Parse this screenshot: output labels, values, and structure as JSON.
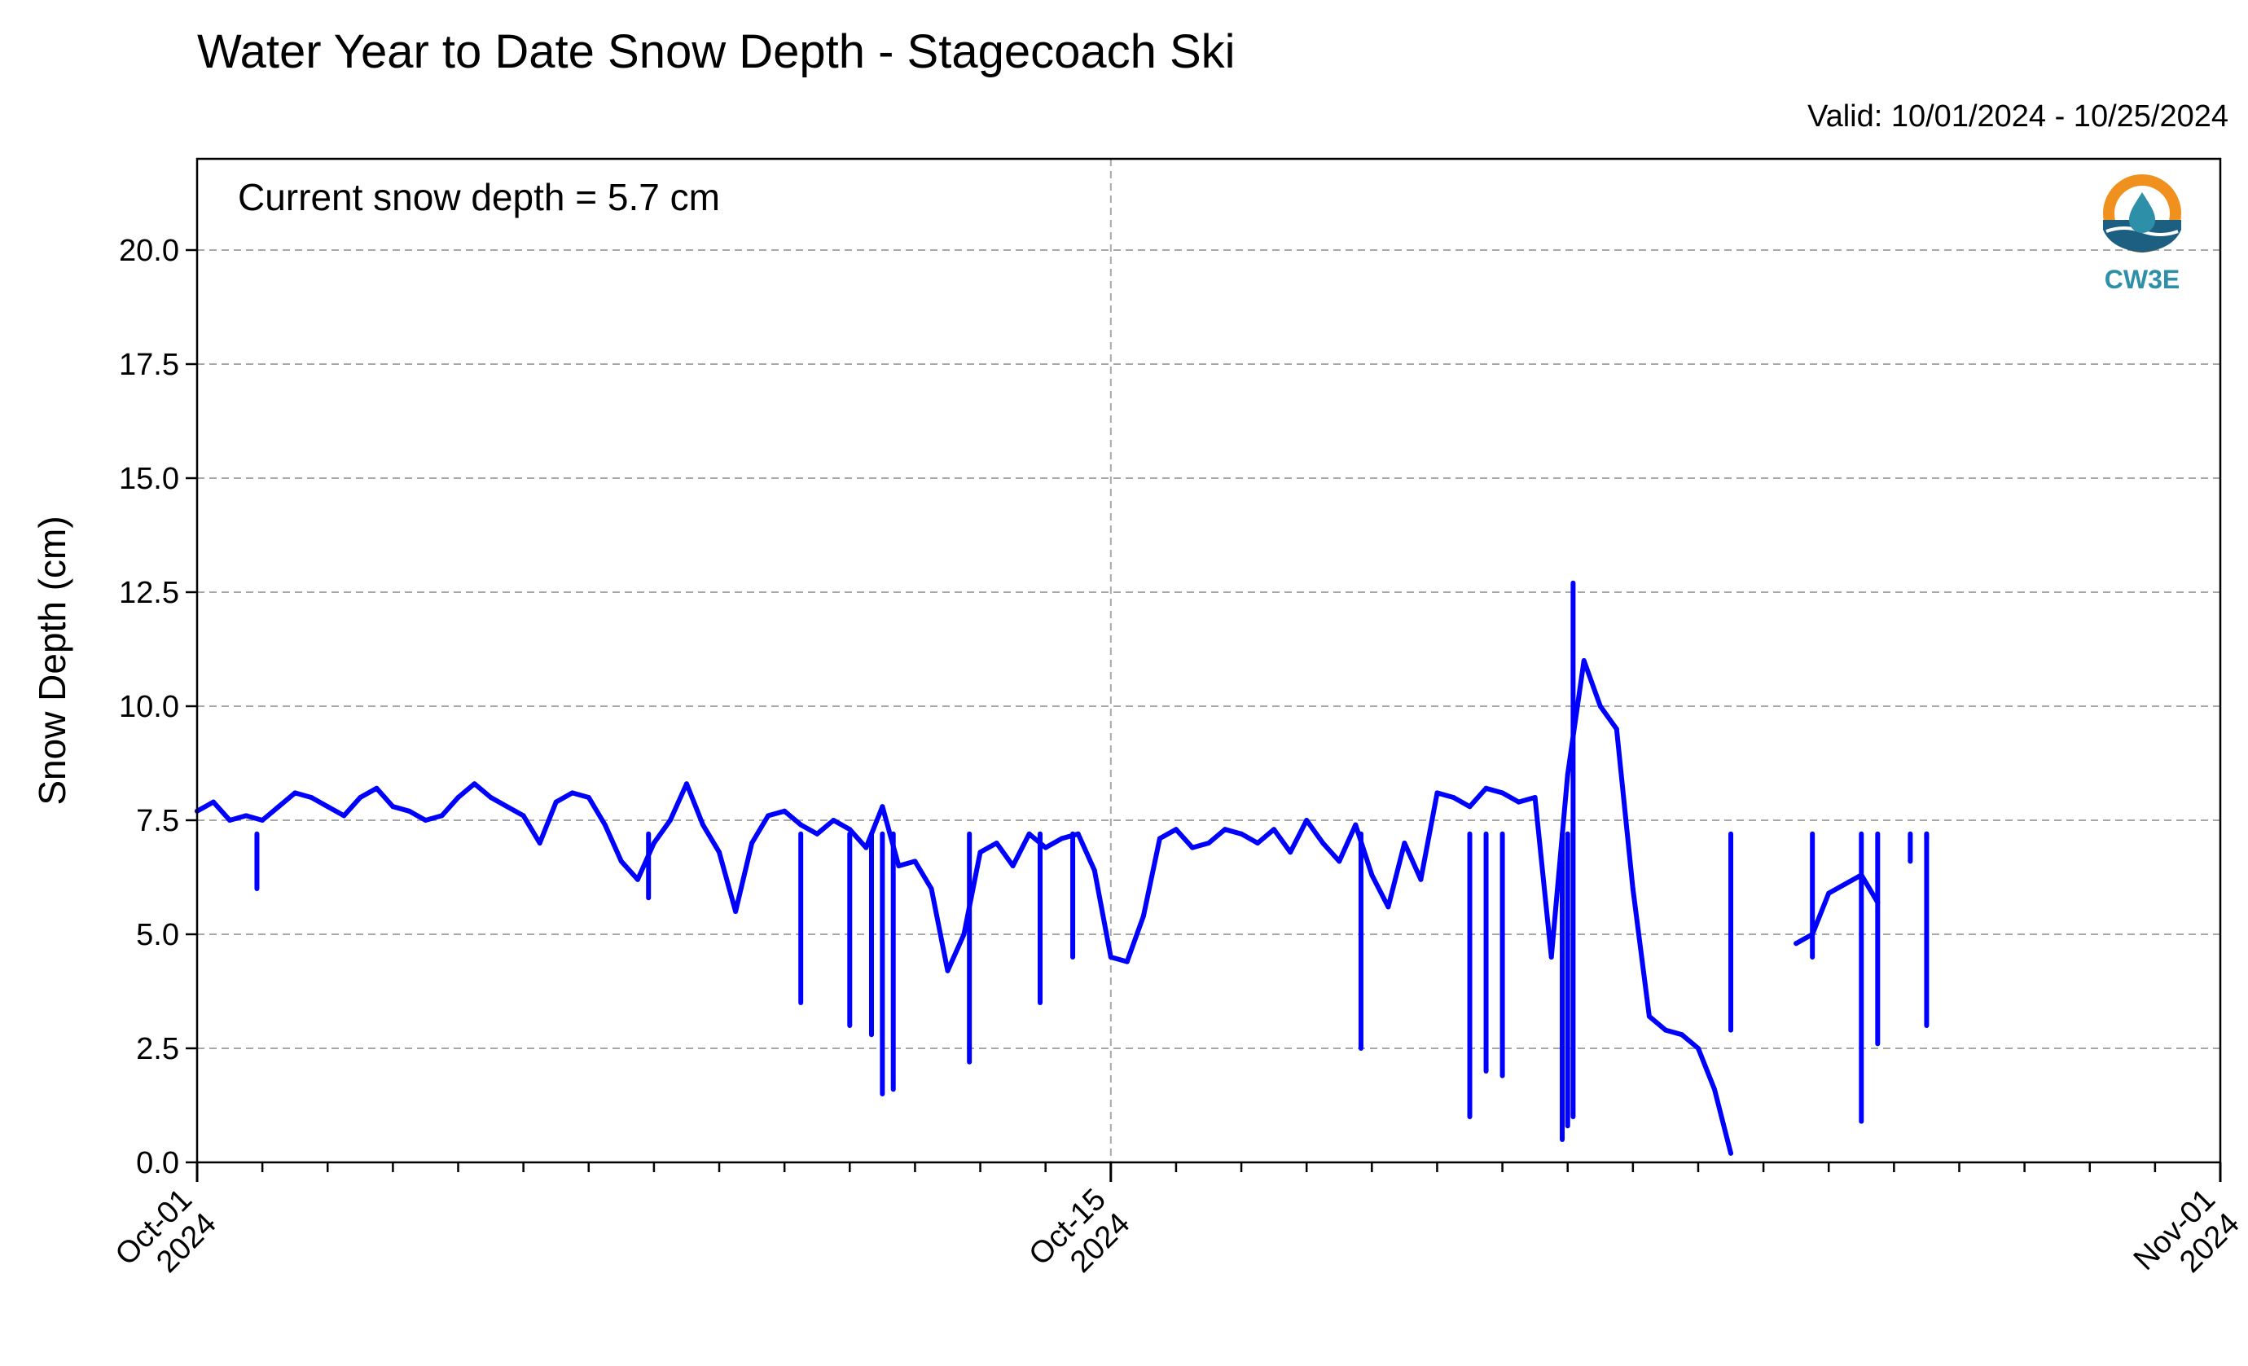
{
  "chart_data": {
    "type": "line",
    "title": "Water Year to Date Snow Depth - Stagecoach Ski",
    "subtitle": "Valid: 10/01/2024 - 10/25/2024",
    "annotation": "Current snow depth = 5.7 cm",
    "xlabel": "",
    "ylabel": "Snow Depth (cm)",
    "xlim": [
      "2024-10-01",
      "2024-11-01"
    ],
    "ylim": [
      0,
      22
    ],
    "yticks": [
      "0.0",
      "2.5",
      "5.0",
      "7.5",
      "10.0",
      "12.5",
      "15.0",
      "17.5",
      "20.0"
    ],
    "xticks": [
      {
        "date": "2024-10-01",
        "label1": "Oct-01",
        "label2": "2024"
      },
      {
        "date": "2024-10-15",
        "label1": "Oct-15",
        "label2": "2024"
      },
      {
        "date": "2024-11-01",
        "label1": "Nov-01",
        "label2": "2024"
      }
    ],
    "grid": true,
    "line_color": "#0000ff",
    "series": [
      {
        "values": [
          [
            "2024-10-01T00:00",
            7.7
          ],
          [
            "2024-10-01T06:00",
            7.9
          ],
          [
            "2024-10-01T12:00",
            7.5
          ],
          [
            "2024-10-01T18:00",
            7.6
          ],
          [
            "2024-10-02T00:00",
            7.5
          ],
          [
            "2024-10-02T06:00",
            7.8
          ],
          [
            "2024-10-02T12:00",
            8.1
          ],
          [
            "2024-10-02T18:00",
            8.0
          ],
          [
            "2024-10-03T00:00",
            7.8
          ],
          [
            "2024-10-03T06:00",
            7.6
          ],
          [
            "2024-10-03T12:00",
            8.0
          ],
          [
            "2024-10-03T18:00",
            8.2
          ],
          [
            "2024-10-04T00:00",
            7.8
          ],
          [
            "2024-10-04T06:00",
            7.7
          ],
          [
            "2024-10-04T12:00",
            7.5
          ],
          [
            "2024-10-04T18:00",
            7.6
          ],
          [
            "2024-10-05T00:00",
            8.0
          ],
          [
            "2024-10-05T06:00",
            8.3
          ],
          [
            "2024-10-05T12:00",
            8.0
          ],
          [
            "2024-10-05T18:00",
            7.8
          ],
          [
            "2024-10-06T00:00",
            7.6
          ],
          [
            "2024-10-06T06:00",
            7.0
          ],
          [
            "2024-10-06T12:00",
            7.9
          ],
          [
            "2024-10-06T18:00",
            8.1
          ],
          [
            "2024-10-07T00:00",
            8.0
          ],
          [
            "2024-10-07T06:00",
            7.4
          ],
          [
            "2024-10-07T12:00",
            6.6
          ],
          [
            "2024-10-07T18:00",
            6.2
          ],
          [
            "2024-10-08T00:00",
            7.0
          ],
          [
            "2024-10-08T06:00",
            7.5
          ],
          [
            "2024-10-08T12:00",
            8.3
          ],
          [
            "2024-10-08T18:00",
            7.4
          ],
          [
            "2024-10-09T00:00",
            6.8
          ],
          [
            "2024-10-09T06:00",
            5.5
          ],
          [
            "2024-10-09T12:00",
            7.0
          ],
          [
            "2024-10-09T18:00",
            7.6
          ],
          [
            "2024-10-10T00:00",
            7.7
          ],
          [
            "2024-10-10T06:00",
            7.4
          ],
          [
            "2024-10-10T12:00",
            7.2
          ],
          [
            "2024-10-10T18:00",
            7.5
          ],
          [
            "2024-10-11T00:00",
            7.3
          ],
          [
            "2024-10-11T06:00",
            6.9
          ],
          [
            "2024-10-11T12:00",
            7.8
          ],
          [
            "2024-10-11T18:00",
            6.5
          ],
          [
            "2024-10-12T00:00",
            6.6
          ],
          [
            "2024-10-12T06:00",
            6.0
          ],
          [
            "2024-10-12T12:00",
            4.2
          ],
          [
            "2024-10-12T18:00",
            5.0
          ],
          [
            "2024-10-13T00:00",
            6.8
          ],
          [
            "2024-10-13T06:00",
            7.0
          ],
          [
            "2024-10-13T12:00",
            6.5
          ],
          [
            "2024-10-13T18:00",
            7.2
          ],
          [
            "2024-10-14T00:00",
            6.9
          ],
          [
            "2024-10-14T06:00",
            7.1
          ],
          [
            "2024-10-14T12:00",
            7.2
          ],
          [
            "2024-10-14T18:00",
            6.4
          ],
          [
            "2024-10-15T00:00",
            4.5
          ],
          [
            "2024-10-15T06:00",
            4.4
          ],
          [
            "2024-10-15T12:00",
            5.4
          ],
          [
            "2024-10-15T18:00",
            7.1
          ],
          [
            "2024-10-16T00:00",
            7.3
          ],
          [
            "2024-10-16T06:00",
            6.9
          ],
          [
            "2024-10-16T12:00",
            7.0
          ],
          [
            "2024-10-16T18:00",
            7.3
          ],
          [
            "2024-10-17T00:00",
            7.2
          ],
          [
            "2024-10-17T06:00",
            7.0
          ],
          [
            "2024-10-17T12:00",
            7.3
          ],
          [
            "2024-10-17T18:00",
            6.8
          ],
          [
            "2024-10-18T00:00",
            7.5
          ],
          [
            "2024-10-18T06:00",
            7.0
          ],
          [
            "2024-10-18T12:00",
            6.6
          ],
          [
            "2024-10-18T18:00",
            7.4
          ],
          [
            "2024-10-19T00:00",
            6.3
          ],
          [
            "2024-10-19T06:00",
            5.6
          ],
          [
            "2024-10-19T12:00",
            7.0
          ],
          [
            "2024-10-19T18:00",
            6.2
          ],
          [
            "2024-10-20T00:00",
            8.1
          ],
          [
            "2024-10-20T06:00",
            8.0
          ],
          [
            "2024-10-20T12:00",
            7.8
          ],
          [
            "2024-10-20T18:00",
            8.2
          ],
          [
            "2024-10-21T00:00",
            8.1
          ],
          [
            "2024-10-21T06:00",
            7.9
          ],
          [
            "2024-10-21T12:00",
            8.0
          ],
          [
            "2024-10-21T18:00",
            4.5
          ],
          [
            "2024-10-22T00:00",
            8.5
          ],
          [
            "2024-10-22T06:00",
            11.0
          ],
          [
            "2024-10-22T12:00",
            10.0
          ],
          [
            "2024-10-22T18:00",
            9.5
          ],
          [
            "2024-10-23T00:00",
            6.0
          ],
          [
            "2024-10-23T06:00",
            3.2
          ],
          [
            "2024-10-23T12:00",
            2.9
          ],
          [
            "2024-10-23T18:00",
            2.8
          ],
          [
            "2024-10-24T00:00",
            2.5
          ],
          [
            "2024-10-24T06:00",
            1.6
          ],
          [
            "2024-10-24T12:00",
            0.2
          ],
          [
            "2024-10-24T18:00",
            null
          ],
          [
            "2024-10-25T00:00",
            null
          ],
          [
            "2024-10-25T06:00",
            null
          ],
          [
            "2024-10-25T12:00",
            4.8
          ],
          [
            "2024-10-25T18:00",
            5.0
          ],
          [
            "2024-10-26T00:00",
            5.9
          ],
          [
            "2024-10-26T06:00",
            6.1
          ],
          [
            "2024-10-26T12:00",
            6.3
          ],
          [
            "2024-10-26T18:00",
            5.7
          ]
        ]
      }
    ],
    "extra_marks": [
      {
        "x": "2024-10-01T22:00",
        "y": 6.0
      },
      {
        "x": "2024-10-07T22:00",
        "y": 5.8
      },
      {
        "x": "2024-10-10T06:00",
        "y": 3.5
      },
      {
        "x": "2024-10-11T00:00",
        "y": 3.0
      },
      {
        "x": "2024-10-11T08:00",
        "y": 2.8
      },
      {
        "x": "2024-10-11T12:00",
        "y": 1.5
      },
      {
        "x": "2024-10-11T16:00",
        "y": 1.6
      },
      {
        "x": "2024-10-12T20:00",
        "y": 2.2
      },
      {
        "x": "2024-10-13T22:00",
        "y": 3.5
      },
      {
        "x": "2024-10-14T10:00",
        "y": 4.5
      },
      {
        "x": "2024-10-18T20:00",
        "y": 2.5
      },
      {
        "x": "2024-10-20T12:00",
        "y": 1.0
      },
      {
        "x": "2024-10-20T18:00",
        "y": 2.0
      },
      {
        "x": "2024-10-21T00:00",
        "y": 1.9
      },
      {
        "x": "2024-10-22T00:00",
        "y": 0.8
      },
      {
        "x": "2024-10-22T02:00",
        "y": 12.7
      },
      {
        "x": "2024-10-22T02:00",
        "y": 1.0
      },
      {
        "x": "2024-10-24T12:00",
        "y": 2.9
      },
      {
        "x": "2024-10-25T18:00",
        "y": 4.5
      },
      {
        "x": "2024-10-26T12:00",
        "y": 0.9
      },
      {
        "x": "2024-10-26T18:00",
        "y": 2.6
      },
      {
        "x": "2024-10-27T06:00",
        "y": 6.6
      },
      {
        "x": "2024-10-27T12:00",
        "y": 3.0
      },
      {
        "x": "2024-10-27T12:00",
        "y": 7.1
      },
      {
        "x": "2024-10-21T22:00",
        "y": 0.5
      }
    ]
  },
  "logo": {
    "text": "CW3E",
    "colors": {
      "orange": "#f0901e",
      "teal": "#2d8fa8",
      "navy": "#1d5f80"
    }
  }
}
